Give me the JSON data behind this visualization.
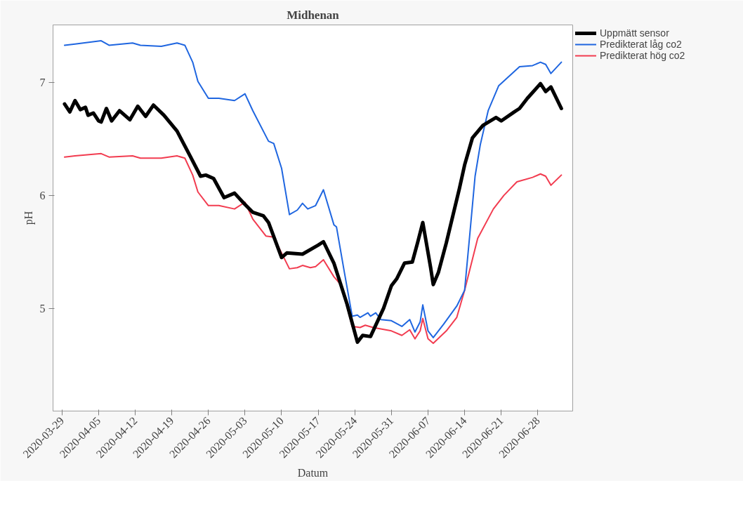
{
  "chart_data": {
    "type": "line",
    "title": "Midhenan",
    "xlabel": "Datum",
    "ylabel": "pH",
    "xlim": [
      "2020-03-27T07:00",
      "2020-07-04T16:00"
    ],
    "xticks": [
      "2020-03-29",
      "2020-04-05",
      "2020-04-12",
      "2020-04-19",
      "2020-04-26",
      "2020-05-03",
      "2020-05-10",
      "2020-05-17",
      "2020-05-24",
      "2020-05-31",
      "2020-06-07",
      "2020-06-14",
      "2020-06-21",
      "2020-06-28"
    ],
    "ylim": [
      4.09,
      7.51
    ],
    "yticks": [
      5,
      6,
      7
    ],
    "grid": false,
    "legend": "top right",
    "marker": "none",
    "line_style": "solid",
    "series": [
      {
        "name": "Uppmätt sensor",
        "color": "#000000",
        "x": [
          "2020-03-29T12:00",
          "2020-03-30T12:00",
          "2020-03-31T12:00",
          "2020-04-01T12:00",
          "2020-04-02T12:00",
          "2020-04-03",
          "2020-04-04",
          "2020-04-05",
          "2020-04-05T12:00",
          "2020-04-06T12:00",
          "2020-04-07T12:00",
          "2020-04-09",
          "2020-04-11",
          "2020-04-12T12:00",
          "2020-04-14",
          "2020-04-15T12:00",
          "2020-04-17T12:00",
          "2020-04-20",
          "2020-04-22T12:00",
          "2020-04-24T12:00",
          "2020-04-25T12:00",
          "2020-04-27",
          "2020-04-29",
          "2020-05-01",
          "2020-05-03",
          "2020-05-04T12:00",
          "2020-05-06T12:00",
          "2020-05-07T12:00",
          "2020-05-10",
          "2020-05-11",
          "2020-05-14",
          "2020-05-17",
          "2020-05-18",
          "2020-05-20",
          "2020-05-22T12:00",
          "2020-05-24T12:00",
          "2020-05-25T12:00",
          "2020-05-27",
          "2020-05-29T12:00",
          "2020-05-31",
          "2020-06-01",
          "2020-06-02T12:00",
          "2020-06-04",
          "2020-06-05",
          "2020-06-06",
          "2020-06-07T12:00",
          "2020-06-08",
          "2020-06-09",
          "2020-06-10T12:00",
          "2020-06-13",
          "2020-06-14",
          "2020-06-15T12:00",
          "2020-06-17T12:00",
          "2020-06-20",
          "2020-06-21",
          "2020-06-23T12:00",
          "2020-06-24T12:00",
          "2020-06-26",
          "2020-06-28T12:00",
          "2020-06-29T12:00",
          "2020-06-30T12:00",
          "2020-07-02T12:00"
        ],
        "values": [
          6.81,
          6.74,
          6.84,
          6.76,
          6.78,
          6.71,
          6.73,
          6.66,
          6.65,
          6.77,
          6.66,
          6.75,
          6.67,
          6.79,
          6.7,
          6.8,
          6.71,
          6.57,
          6.35,
          6.17,
          6.18,
          6.15,
          5.98,
          6.02,
          5.92,
          5.85,
          5.82,
          5.76,
          5.45,
          5.49,
          5.48,
          5.56,
          5.59,
          5.4,
          5.04,
          4.7,
          4.76,
          4.75,
          5.0,
          5.2,
          5.26,
          5.4,
          5.41,
          5.58,
          5.76,
          5.36,
          5.21,
          5.32,
          5.58,
          6.06,
          6.27,
          6.51,
          6.62,
          6.69,
          6.66,
          6.74,
          6.77,
          6.86,
          6.99,
          6.92,
          6.96,
          6.77
        ]
      },
      {
        "name": "Predikterat låg co2",
        "color": "#1f66e0",
        "x": [
          "2020-03-29T12:00",
          "2020-03-31T12:00",
          "2020-04-05T12:00",
          "2020-04-07",
          "2020-04-11T12:00",
          "2020-04-13",
          "2020-04-17",
          "2020-04-20",
          "2020-04-21T12:00",
          "2020-04-23",
          "2020-04-24",
          "2020-04-26",
          "2020-04-28",
          "2020-05-01",
          "2020-05-03",
          "2020-05-04T12:00",
          "2020-05-07T12:00",
          "2020-05-08T12:00",
          "2020-05-10",
          "2020-05-11T12:00",
          "2020-05-13",
          "2020-05-14",
          "2020-05-15",
          "2020-05-16T12:00",
          "2020-05-18",
          "2020-05-20",
          "2020-05-20T12:00",
          "2020-05-22",
          "2020-05-23T12:00",
          "2020-05-24T12:00",
          "2020-05-25",
          "2020-05-26T12:00",
          "2020-05-27",
          "2020-05-28",
          "2020-05-29",
          "2020-05-31",
          "2020-06-02",
          "2020-06-03T12:00",
          "2020-06-04T12:00",
          "2020-06-05T12:00",
          "2020-06-06",
          "2020-06-07",
          "2020-06-08",
          "2020-06-10",
          "2020-06-12T12:00",
          "2020-06-14",
          "2020-06-15",
          "2020-06-16",
          "2020-06-17",
          "2020-06-18T12:00",
          "2020-06-20T12:00",
          "2020-06-24T12:00",
          "2020-06-27",
          "2020-06-28T12:00",
          "2020-06-29T12:00",
          "2020-06-30T12:00",
          "2020-07-02T12:00"
        ],
        "values": [
          7.33,
          7.34,
          7.37,
          7.33,
          7.35,
          7.33,
          7.32,
          7.35,
          7.33,
          7.18,
          7.01,
          6.86,
          6.86,
          6.84,
          6.9,
          6.75,
          6.48,
          6.46,
          6.24,
          5.83,
          5.87,
          5.93,
          5.88,
          5.91,
          6.05,
          5.74,
          5.72,
          5.32,
          4.93,
          4.94,
          4.92,
          4.96,
          4.93,
          4.96,
          4.9,
          4.89,
          4.84,
          4.9,
          4.79,
          4.88,
          5.03,
          4.8,
          4.74,
          4.86,
          5.02,
          5.16,
          5.66,
          6.17,
          6.45,
          6.75,
          6.97,
          7.14,
          7.15,
          7.18,
          7.16,
          7.08,
          7.18
        ]
      },
      {
        "name": "Predikterat hög co2",
        "color": "#f23c50",
        "x": [
          "2020-03-29T12:00",
          "2020-03-31T12:00",
          "2020-04-05T12:00",
          "2020-04-07",
          "2020-04-11T12:00",
          "2020-04-13",
          "2020-04-17",
          "2020-04-20",
          "2020-04-21T12:00",
          "2020-04-23",
          "2020-04-24",
          "2020-04-26",
          "2020-04-28",
          "2020-05-01",
          "2020-05-03",
          "2020-05-04T12:00",
          "2020-05-07",
          "2020-05-08T12:00",
          "2020-05-11T12:00",
          "2020-05-13",
          "2020-05-14",
          "2020-05-15T12:00",
          "2020-05-16T12:00",
          "2020-05-18",
          "2020-05-20",
          "2020-05-21T12:00",
          "2020-05-23T12:00",
          "2020-05-25",
          "2020-05-26",
          "2020-05-27T12:00",
          "2020-05-31",
          "2020-06-02",
          "2020-06-03T12:00",
          "2020-06-04T12:00",
          "2020-06-05T12:00",
          "2020-06-06",
          "2020-06-07",
          "2020-06-08",
          "2020-06-10T12:00",
          "2020-06-12T12:00",
          "2020-06-14",
          "2020-06-16T12:00",
          "2020-06-19T12:00",
          "2020-06-21T12:00",
          "2020-06-24",
          "2020-06-27",
          "2020-06-28T12:00",
          "2020-06-29T12:00",
          "2020-06-30T12:00",
          "2020-07-02T12:00"
        ],
        "values": [
          6.34,
          6.35,
          6.37,
          6.34,
          6.35,
          6.33,
          6.33,
          6.35,
          6.33,
          6.18,
          6.03,
          5.91,
          5.91,
          5.88,
          5.94,
          5.79,
          5.64,
          5.63,
          5.35,
          5.36,
          5.38,
          5.36,
          5.37,
          5.43,
          5.28,
          5.2,
          4.84,
          4.83,
          4.85,
          4.83,
          4.8,
          4.76,
          4.81,
          4.73,
          4.8,
          4.91,
          4.73,
          4.69,
          4.8,
          4.92,
          5.16,
          5.62,
          5.88,
          6.0,
          6.12,
          6.16,
          6.19,
          6.17,
          6.09,
          6.18
        ]
      }
    ]
  }
}
